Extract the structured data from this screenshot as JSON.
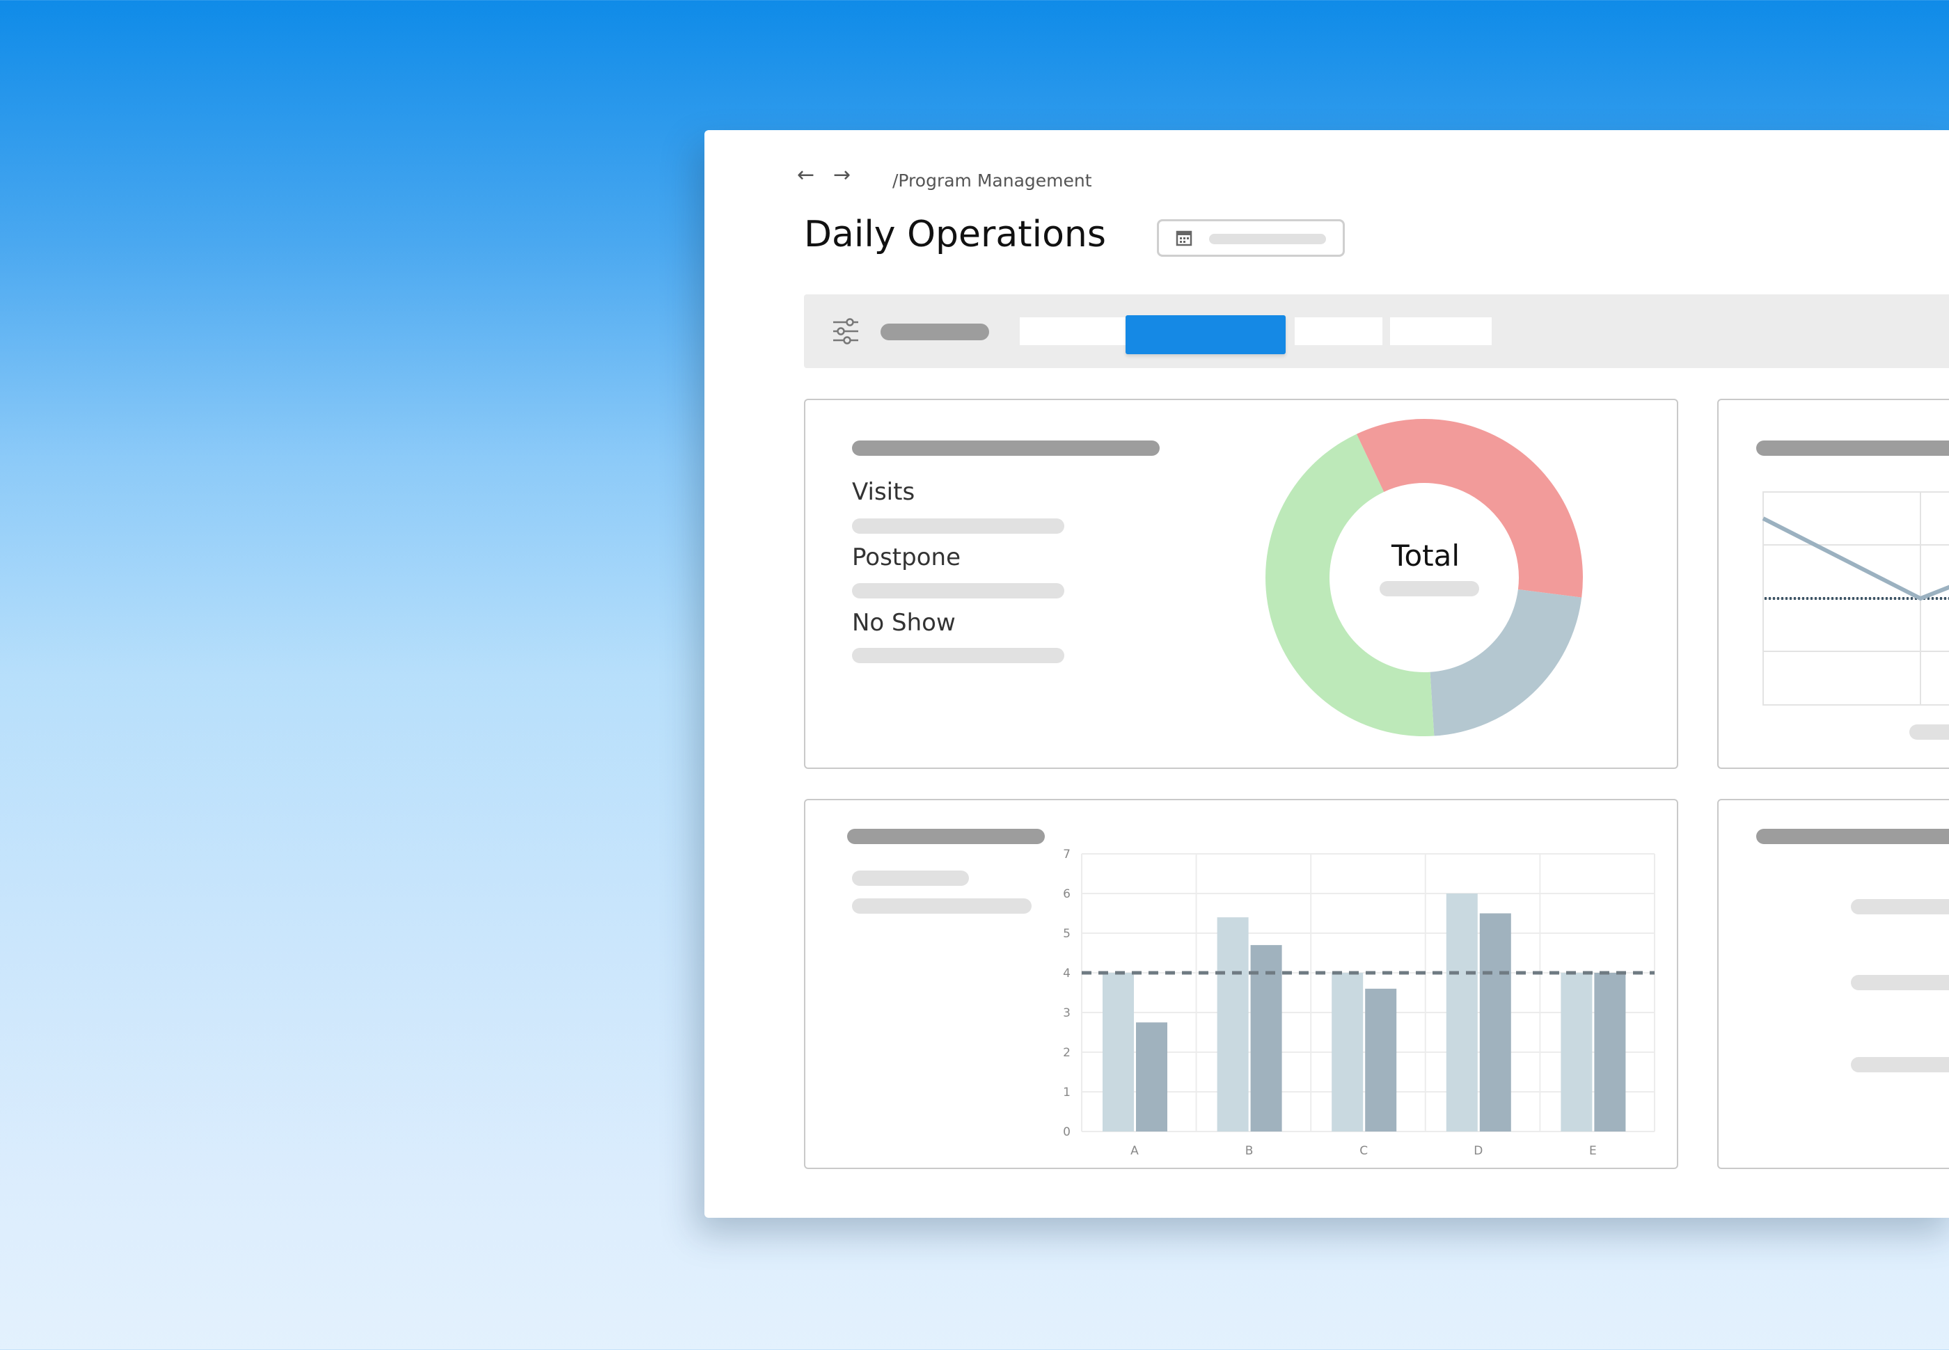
{
  "breadcrumb": {
    "back_glyph": "←",
    "forward_glyph": "→",
    "path": "/Program Management"
  },
  "page": {
    "title": "Daily Operations"
  },
  "toolbar": {
    "filter_icon": "sliders-icon",
    "segments": 4,
    "active_segment": 1
  },
  "summary_card": {
    "legend": [
      "Visits",
      "Postpone",
      "No Show"
    ],
    "donut_center_label": "Total"
  },
  "colors": {
    "accent": "#1589e5",
    "visits": "#bde9b9",
    "postpone": "#f29b9a",
    "no_show": "#b4c7d0",
    "bar_light": "#c9d9e0",
    "bar_dark": "#a0b2be",
    "line": "#9bb1c0"
  },
  "chart_data": {
    "type": "bar",
    "categories": [
      "A",
      "B",
      "C",
      "D",
      "E"
    ],
    "series": [
      {
        "values": [
          4.0,
          5.4,
          4.0,
          6.0,
          4.0
        ]
      },
      {
        "values": [
          2.75,
          4.7,
          3.6,
          5.5,
          4.0
        ]
      }
    ],
    "reference_line": 4,
    "ylim": [
      0,
      7
    ],
    "yticks": [
      "0",
      "1",
      "2",
      "3",
      "4",
      "5",
      "6",
      "7"
    ],
    "grid": true
  },
  "donut_data": {
    "type": "pie",
    "slices": [
      {
        "key": "postpone",
        "value": 34
      },
      {
        "key": "no_show",
        "value": 22
      },
      {
        "key": "visits",
        "value": 44
      }
    ]
  }
}
